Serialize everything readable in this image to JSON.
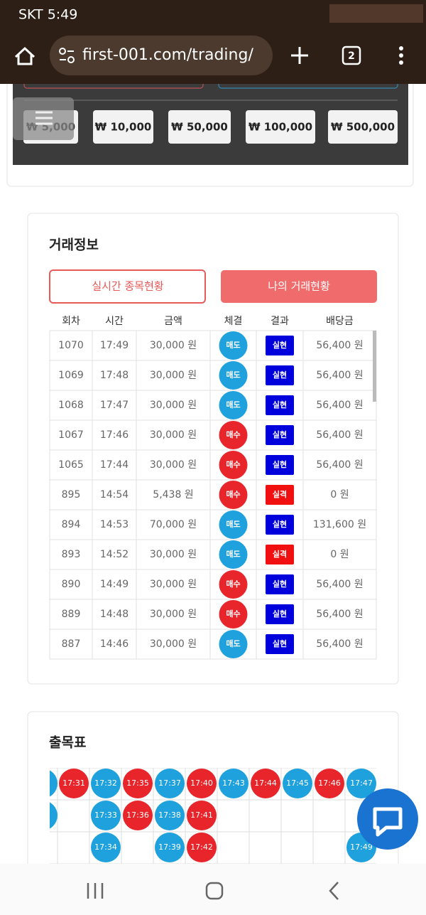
{
  "status": {
    "time": "SKT 5:49"
  },
  "browser": {
    "url": "first-001.com/trading/",
    "tabs": "2"
  },
  "amounts": [
    "₩ 5,000",
    "₩ 10,000",
    "₩ 50,000",
    "₩ 100,000",
    "₩ 500,000"
  ],
  "trade": {
    "title": "거래정보",
    "buttons": [
      "실시간 종목현황",
      "나의 거래현황"
    ],
    "headers": [
      "회차",
      "시간",
      "금액",
      "체결",
      "결과",
      "배당금"
    ],
    "rows": [
      [
        "1070",
        "17:49",
        "30,000 원",
        "매도",
        "실현",
        "56,400 원"
      ],
      [
        "1069",
        "17:48",
        "30,000 원",
        "매도",
        "실현",
        "56,400 원"
      ],
      [
        "1068",
        "17:47",
        "30,000 원",
        "매도",
        "실현",
        "56,400 원"
      ],
      [
        "1067",
        "17:46",
        "30,000 원",
        "매수",
        "실현",
        "56,400 원"
      ],
      [
        "1065",
        "17:44",
        "30,000 원",
        "매수",
        "실현",
        "56,400 원"
      ],
      [
        "895",
        "14:54",
        "5,438 원",
        "매수",
        "실격",
        "0 원"
      ],
      [
        "894",
        "14:53",
        "70,000 원",
        "매도",
        "실현",
        "131,600 원"
      ],
      [
        "893",
        "14:52",
        "30,000 원",
        "매도",
        "실격",
        "0 원"
      ],
      [
        "890",
        "14:49",
        "30,000 원",
        "매수",
        "실현",
        "56,400 원"
      ],
      [
        "889",
        "14:48",
        "30,000 원",
        "매수",
        "실현",
        "56,400 원"
      ],
      [
        "887",
        "14:46",
        "30,000 원",
        "매도",
        "실현",
        "56,400 원"
      ]
    ],
    "row_colors": [
      [
        "#1ea1dc",
        "#0000dd"
      ],
      [
        "#1ea1dc",
        "#0000dd"
      ],
      [
        "#1ea1dc",
        "#0000dd"
      ],
      [
        "#e8252b",
        "#0000dd"
      ],
      [
        "#e8252b",
        "#0000dd"
      ],
      [
        "#e8252b",
        "#f01010"
      ],
      [
        "#1ea1dc",
        "#0000dd"
      ],
      [
        "#1ea1dc",
        "#f01010"
      ],
      [
        "#e8252b",
        "#0000dd"
      ],
      [
        "#e8252b",
        "#0000dd"
      ],
      [
        "#1ea1dc",
        "#0000dd"
      ]
    ]
  },
  "board": {
    "title": "출목표",
    "columns": [
      {
        "color": "#e8252b",
        "times": [
          "17:31"
        ]
      },
      {
        "color": "#1ea1dc",
        "times": [
          "17:32",
          "17:33",
          "17:34"
        ]
      },
      {
        "color": "#e8252b",
        "times": [
          "17:35",
          "17:36"
        ]
      },
      {
        "color": "#1ea1dc",
        "times": [
          "17:37",
          "17:38",
          "17:39"
        ]
      },
      {
        "color": "#e8252b",
        "times": [
          "17:40",
          "17:41",
          "17:42"
        ]
      },
      {
        "color": "#1ea1dc",
        "times": [
          "17:43"
        ]
      },
      {
        "color": "#e8252b",
        "times": [
          "17:44"
        ]
      },
      {
        "color": "#1ea1dc",
        "times": [
          "17:45"
        ]
      },
      {
        "color": "#e8252b",
        "times": [
          "17:46"
        ]
      },
      {
        "color": "#1ea1dc",
        "times": [
          "17:47"
        ]
      }
    ],
    "extra": {
      "color": "#1ea1dc",
      "times": [
        "17:49"
      ]
    }
  }
}
